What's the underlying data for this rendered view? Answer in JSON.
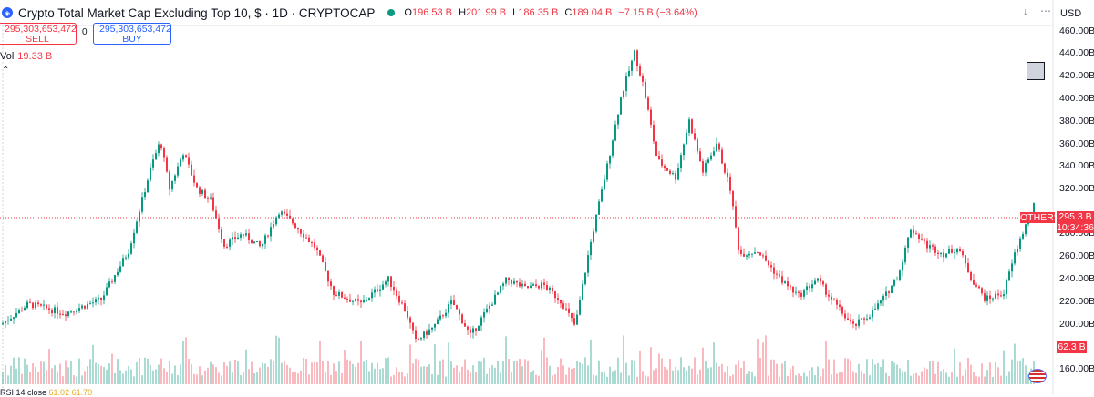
{
  "header": {
    "title": "Crypto Total Market Cap Excluding Top 10, $ · 1D · CRYPTOCAP",
    "ohlc": [
      {
        "key": "O",
        "value": "196.53 B"
      },
      {
        "key": "H",
        "value": "201.99 B"
      },
      {
        "key": "L",
        "value": "186.35 B"
      },
      {
        "key": "C",
        "value": "189.04 B"
      }
    ],
    "change": "−7.15 B (−3.64%)",
    "currency": "USD"
  },
  "trade": {
    "sell_price": "295,303,653,472",
    "sell_label": "SELL",
    "buy_price": "295,303,653,472",
    "buy_label": "BUY",
    "spread": "0"
  },
  "volume_legend": {
    "label": "Vol",
    "value": "19.33 B"
  },
  "price_axis": {
    "ticks": [
      "460.00B",
      "440.00B",
      "420.00B",
      "400.00B",
      "380.00B",
      "360.00B",
      "340.00B",
      "320.00B",
      "280.00B",
      "260.00B",
      "240.00B",
      "220.00B",
      "200.00B",
      "160.00B"
    ]
  },
  "tags": {
    "symbol": "OTHERS",
    "price": "295.3 B",
    "countdown": "10:34:36",
    "volume": "62.3 B"
  },
  "rsi_legend": {
    "label": "RSI 14 close",
    "value": "61.02",
    "value2": "61.70"
  },
  "icons": [
    "download-icon",
    "more-icon",
    "logo-icon",
    "flag-icon",
    "chevron-up-icon"
  ],
  "colors": {
    "up": "#089981",
    "down": "#f23645",
    "accent": "#2962ff"
  },
  "chart_data": {
    "type": "candlestick",
    "ylim": [
      160,
      460
    ],
    "unit": "B",
    "last_price": 295.3,
    "last_volume": "62.3 B",
    "series": [
      {
        "label_points": [
          [
            0,
            200
          ],
          [
            30,
            218
          ],
          [
            70,
            210
          ],
          [
            110,
            222
          ],
          [
            140,
            265
          ],
          [
            165,
            340
          ],
          [
            175,
            362
          ],
          [
            185,
            320
          ],
          [
            200,
            352
          ],
          [
            215,
            320
          ],
          [
            230,
            310
          ],
          [
            245,
            270
          ],
          [
            265,
            280
          ],
          [
            285,
            268
          ],
          [
            305,
            300
          ],
          [
            320,
            290
          ],
          [
            345,
            268
          ],
          [
            365,
            228
          ],
          [
            395,
            218
          ],
          [
            425,
            240
          ],
          [
            445,
            210
          ],
          [
            455,
            185
          ],
          [
            475,
            198
          ],
          [
            495,
            220
          ],
          [
            515,
            190
          ],
          [
            535,
            215
          ],
          [
            555,
            240
          ],
          [
            575,
            232
          ],
          [
            595,
            235
          ],
          [
            615,
            220
          ],
          [
            630,
            198
          ],
          [
            645,
            265
          ],
          [
            665,
            340
          ],
          [
            680,
            400
          ],
          [
            695,
            440
          ],
          [
            705,
            410
          ],
          [
            720,
            345
          ],
          [
            740,
            330
          ],
          [
            755,
            380
          ],
          [
            770,
            335
          ],
          [
            785,
            360
          ],
          [
            800,
            320
          ],
          [
            810,
            262
          ],
          [
            830,
            265
          ],
          [
            855,
            240
          ],
          [
            875,
            225
          ],
          [
            895,
            240
          ],
          [
            915,
            218
          ],
          [
            935,
            198
          ],
          [
            955,
            210
          ],
          [
            970,
            225
          ],
          [
            985,
            245
          ],
          [
            998,
            285
          ],
          [
            1015,
            270
          ],
          [
            1035,
            262
          ],
          [
            1050,
            268
          ],
          [
            1065,
            240
          ],
          [
            1080,
            222
          ],
          [
            1100,
            228
          ],
          [
            1112,
            262
          ],
          [
            1125,
            290
          ],
          [
            1135,
            308
          ]
        ]
      }
    ]
  }
}
